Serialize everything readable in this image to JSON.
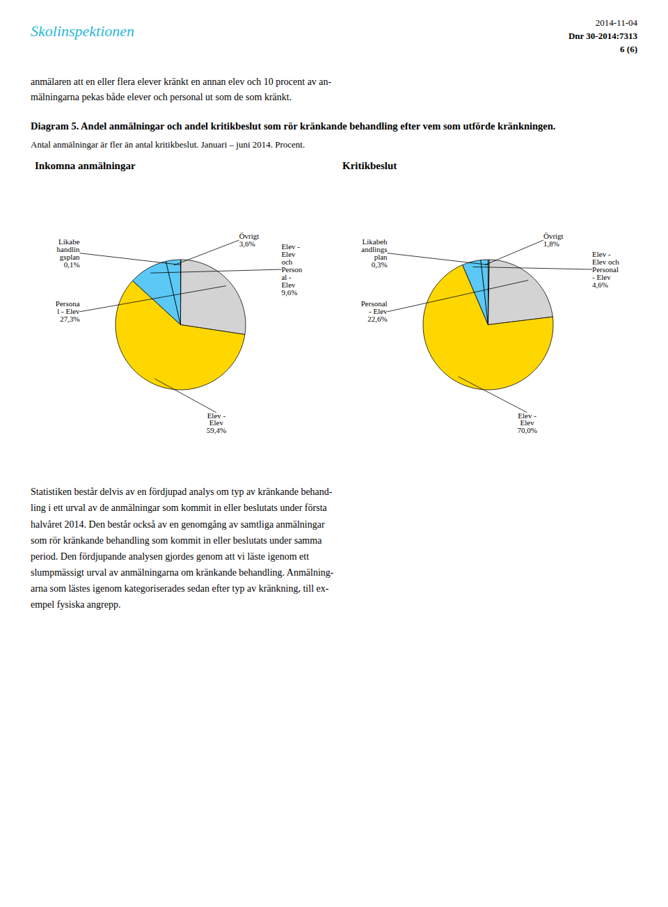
{
  "title": "Diagram 5. Andel anmälningar och andel kritikbeslut som rör kränkande behandling efter vem som utförde kränkningen.",
  "subtitle": "Antal anmälningar är fler än antal kritikbeslut.  Januari – juni 2014. Procent.",
  "annotations": [
    "Skolinspektionen",
    "2014-11-04",
    "Dnr 30-2014:7313",
    "6 (6)",
    "anmälaren att en eller flera elever kränkt en annan elev och 10 procent av an-\nmälningarna pekas både elever och personal ut som de som kränkt.",
    "Statistiken består delvis av en fördjupad analys om typ av kränkande behand-\nling i ett urval av de anmälningar som kommit in eller beslutats under första\nhalvåret 2014.  Den består också av en genomgång av samtliga anmälningar\nsom rör kränkande behandling som kommit in eller beslutats under samma\nperiod.  Den fördjupande analysen gjordes genom att vi läste igenom ett\nslumpmässigt urval av anmälningarna om kränkande behandling. Anmälning-\narna som lästes igenom kategoriserades sedan efter typ av kränkning, till ex-\nempel fysiska angrepp."
  ],
  "chart_data": [
    {
      "type": "pie",
      "title": "Inkomna anmälningar",
      "categories": [
        "Likabe\nhandlin\ngsplan",
        "Persona\nl - Elev",
        "Elev -\nElev",
        "Elev -\nElev\noch\nPerson\nal -\nElev",
        "Övrigt"
      ],
      "values": [
        0.1,
        27.3,
        59.4,
        9.6,
        3.6
      ],
      "value_labels": [
        "0,1%",
        "27,3%",
        "59,4%",
        "9,6%",
        "3,6%"
      ],
      "colors": [
        "#d3d3d3",
        "#d3d3d3",
        "#FFD700",
        "#5BC8F5",
        "#5BC8F5"
      ],
      "data_labels": true
    },
    {
      "type": "pie",
      "title": "Kritikbeslut",
      "categories": [
        "Likabeh\nandlings\nplan",
        "Personal\n- Elev",
        "Elev -\nElev",
        "Elev -\nElev och\nPersonal\n- Elev",
        "Övrigt"
      ],
      "values": [
        0.3,
        22.6,
        70.0,
        4.6,
        1.8
      ],
      "value_labels": [
        "0,3%",
        "22,6%",
        "70,0%",
        "4,6%",
        "1,8%"
      ],
      "colors": [
        "#d3d3d3",
        "#d3d3d3",
        "#FFD700",
        "#5BC8F5",
        "#5BC8F5"
      ],
      "data_labels": true
    }
  ]
}
